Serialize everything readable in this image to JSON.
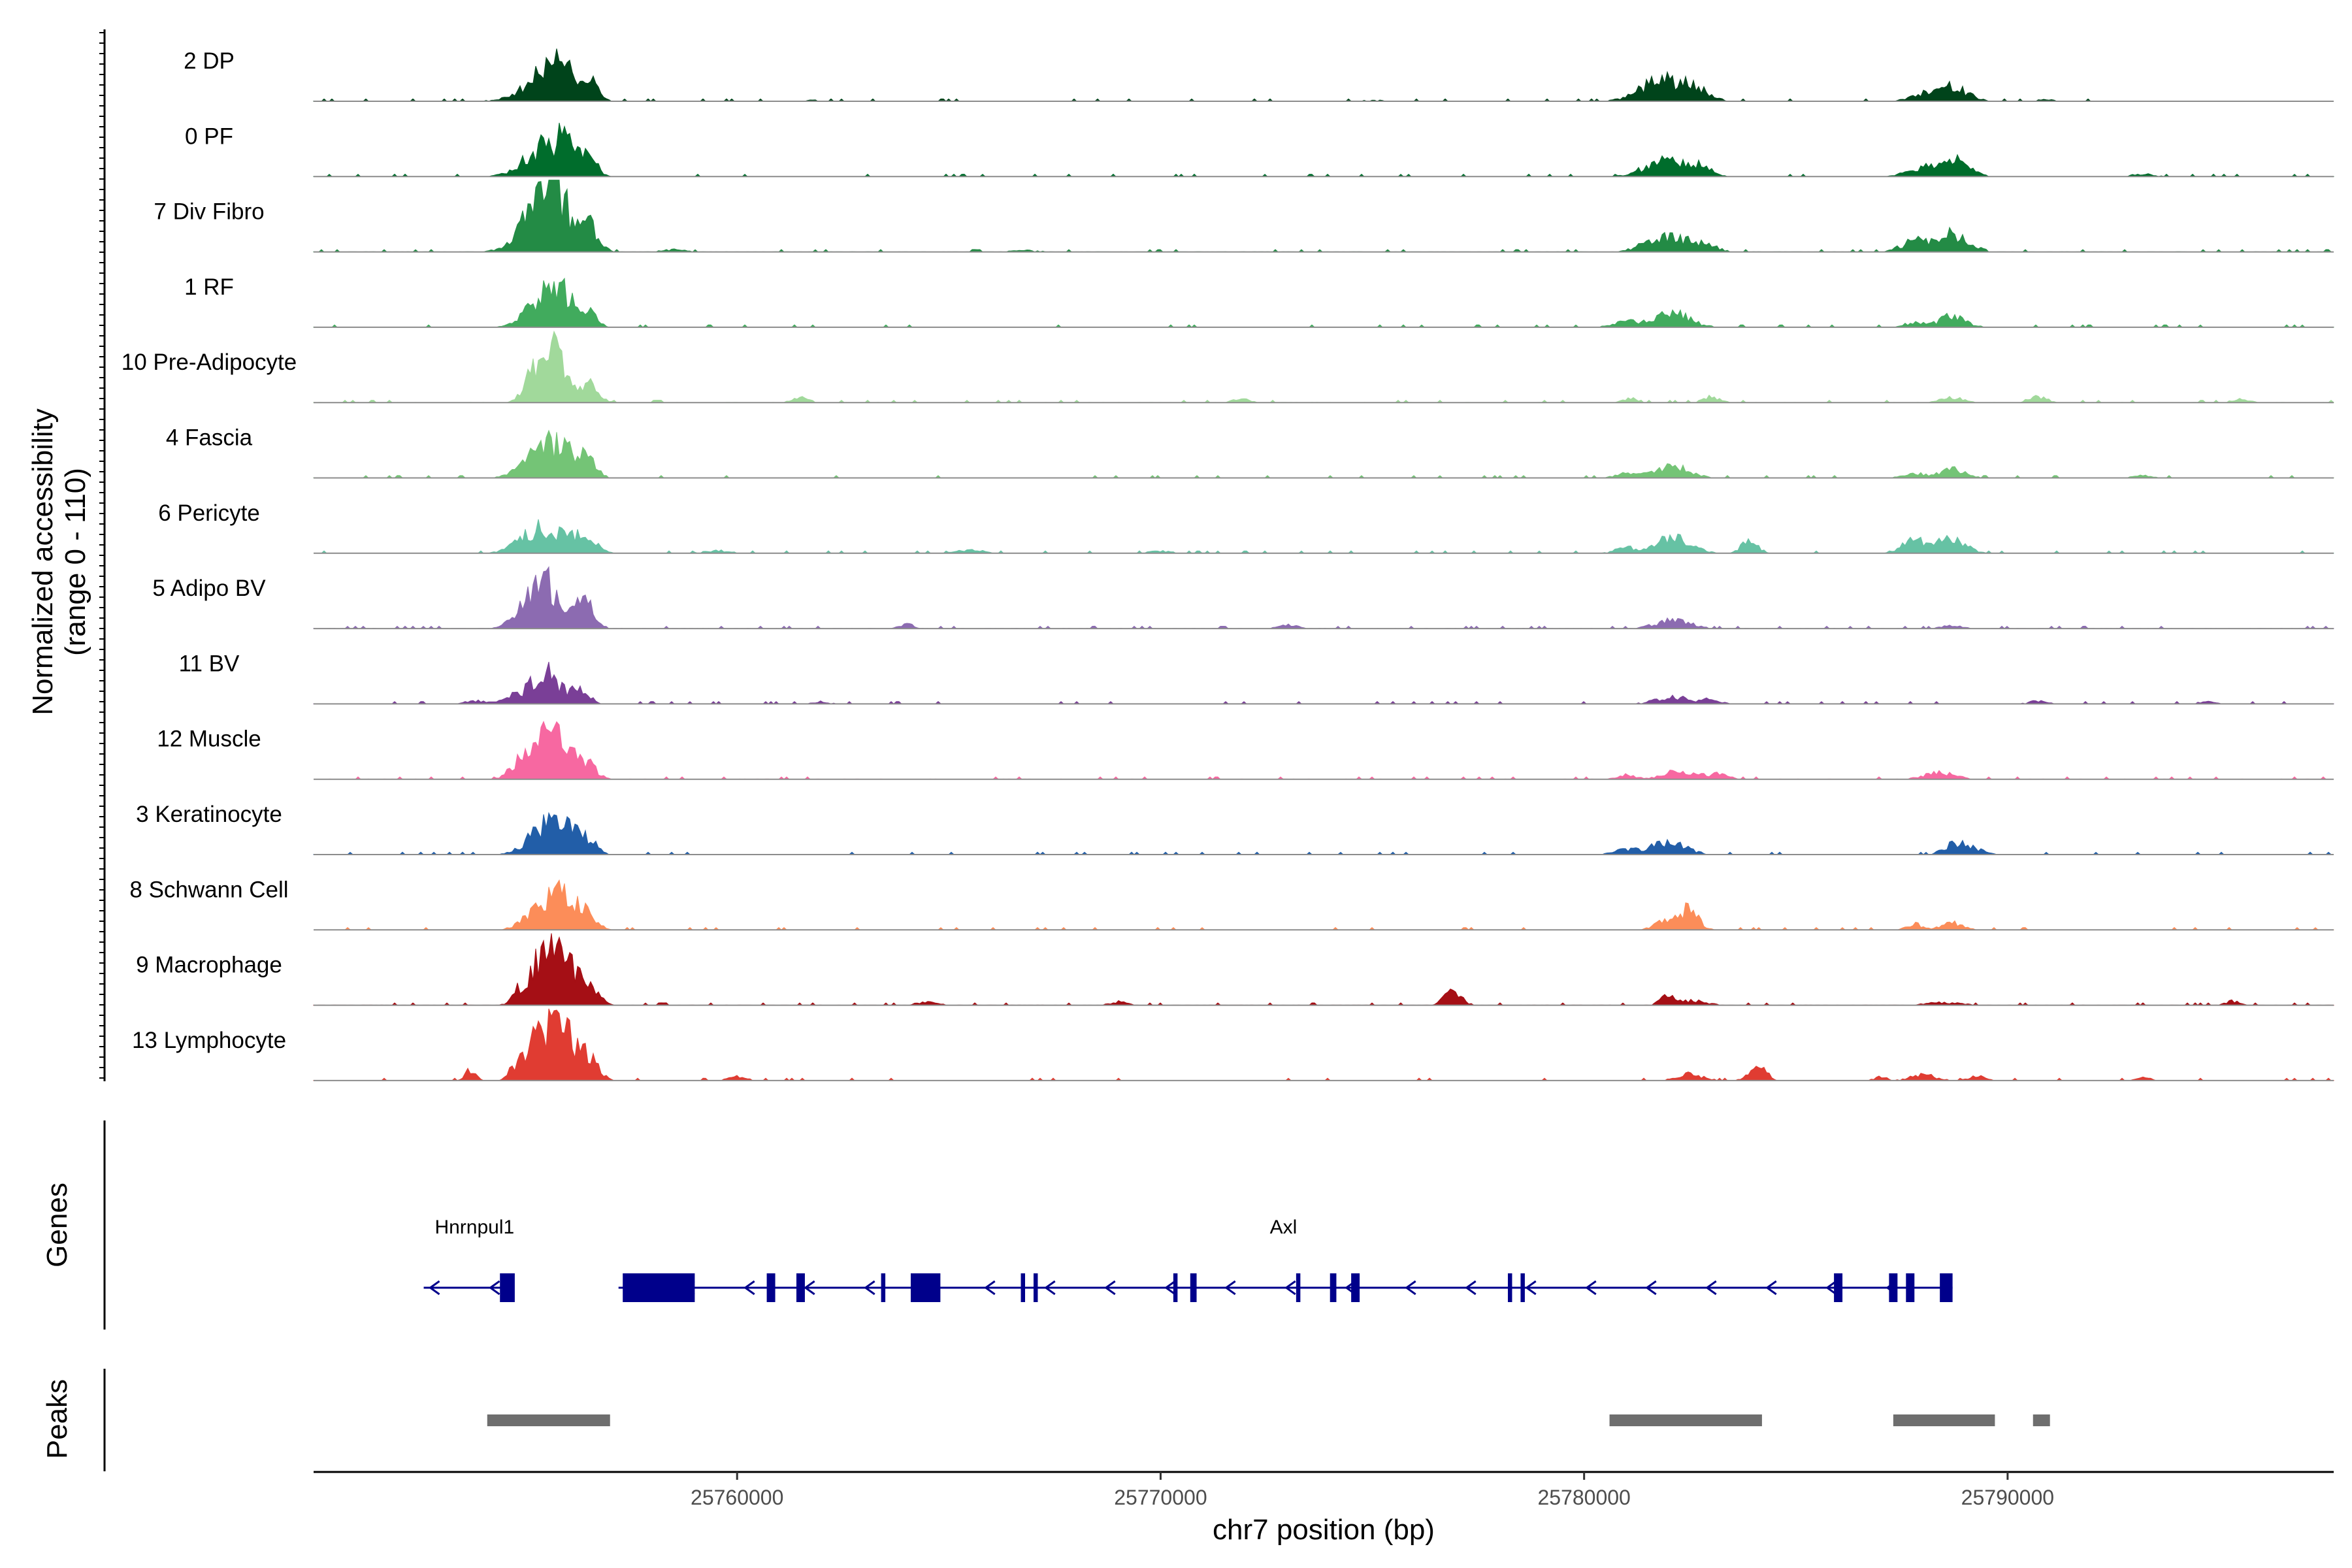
{
  "chart_data": {
    "type": "area",
    "title": "",
    "region": "chr7",
    "coverage": {
      "ylabel_line1": "Normalized accessibility",
      "ylabel_line2": "(range 0 - 110)",
      "ylim": [
        0,
        110
      ],
      "tracks": [
        {
          "name": "2 DP",
          "color": "#00441b",
          "peaks": [
            [
              25755500,
              50,
              520
            ],
            [
              25755900,
              38,
              260
            ],
            [
              25756500,
              30,
              200
            ],
            [
              25761800,
              3,
              150
            ],
            [
              25775000,
              2,
              300
            ],
            [
              25781900,
              40,
              520
            ],
            [
              25782700,
              15,
              300
            ],
            [
              25788700,
              25,
              350
            ],
            [
              25788000,
              12,
              300
            ],
            [
              25790900,
              3,
              200
            ]
          ]
        },
        {
          "name": "0 PF",
          "color": "#006d2c",
          "peaks": [
            [
              25755500,
              55,
              480
            ],
            [
              25756000,
              35,
              250
            ],
            [
              25756500,
              28,
              200
            ],
            [
              25781900,
              30,
              450
            ],
            [
              25782700,
              16,
              300
            ],
            [
              25788700,
              30,
              350
            ],
            [
              25787900,
              15,
              300
            ],
            [
              25793200,
              5,
              250
            ]
          ]
        },
        {
          "name": "7 Div Fibro",
          "color": "#238b45",
          "peaks": [
            [
              25755400,
              95,
              450
            ],
            [
              25755800,
              50,
              300
            ],
            [
              25756500,
              42,
              220
            ],
            [
              25758500,
              4,
              300
            ],
            [
              25766800,
              3,
              300
            ],
            [
              25781900,
              28,
              450
            ],
            [
              25782800,
              14,
              300
            ],
            [
              25788700,
              32,
              380
            ],
            [
              25787800,
              18,
              320
            ]
          ]
        },
        {
          "name": "1 RF",
          "color": "#41ab5d",
          "peaks": [
            [
              25755500,
              60,
              400
            ],
            [
              25756000,
              35,
              250
            ],
            [
              25756500,
              25,
              200
            ],
            [
              25782100,
              25,
              400
            ],
            [
              25781000,
              10,
              300
            ],
            [
              25788700,
              20,
              300
            ],
            [
              25787800,
              8,
              250
            ]
          ]
        },
        {
          "name": "10 Pre-Adipocyte",
          "color": "#a1d99b",
          "peaks": [
            [
              25755400,
              80,
              300
            ],
            [
              25755800,
              55,
              250
            ],
            [
              25756500,
              35,
              220
            ],
            [
              25761500,
              8,
              200
            ],
            [
              25771900,
              6,
              200
            ],
            [
              25781100,
              7,
              200
            ],
            [
              25783000,
              10,
              200
            ],
            [
              25788700,
              10,
              250
            ],
            [
              25790700,
              12,
              200
            ],
            [
              25795500,
              6,
              200
            ]
          ]
        },
        {
          "name": "4 Fascia",
          "color": "#74c476",
          "peaks": [
            [
              25755500,
              55,
              450
            ],
            [
              25756000,
              30,
              250
            ],
            [
              25756500,
              25,
              200
            ],
            [
              25782100,
              22,
              400
            ],
            [
              25781000,
              8,
              250
            ],
            [
              25788700,
              15,
              300
            ],
            [
              25787800,
              8,
              250
            ],
            [
              25793200,
              5,
              200
            ]
          ]
        },
        {
          "name": "6 Pericyte",
          "color": "#66c2a4",
          "peaks": [
            [
              25755400,
              50,
              450
            ],
            [
              25756400,
              30,
              250
            ],
            [
              25759500,
              5,
              300
            ],
            [
              25765500,
              6,
              300
            ],
            [
              25770000,
              4,
              250
            ],
            [
              25782100,
              30,
              400
            ],
            [
              25783900,
              20,
              200
            ],
            [
              25788700,
              28,
              300
            ],
            [
              25787800,
              22,
              300
            ],
            [
              25781000,
              10,
              250
            ]
          ]
        },
        {
          "name": "5 Adipo BV",
          "color": "#8c6bb1",
          "peaks": [
            [
              25755200,
              60,
              350
            ],
            [
              25755700,
              50,
              300
            ],
            [
              25756400,
              45,
              220
            ],
            [
              25764000,
              10,
              150
            ],
            [
              25773000,
              6,
              250
            ],
            [
              25782100,
              15,
              400
            ],
            [
              25788700,
              5,
              250
            ]
          ]
        },
        {
          "name": "11 BV",
          "color": "#7a3f97",
          "peaks": [
            [
              25755500,
              60,
              300
            ],
            [
              25754800,
              15,
              300
            ],
            [
              25756300,
              25,
              200
            ],
            [
              25753800,
              6,
              200
            ],
            [
              25762000,
              4,
              200
            ],
            [
              25782100,
              12,
              400
            ],
            [
              25783000,
              8,
              200
            ],
            [
              25790700,
              6,
              200
            ],
            [
              25794700,
              4,
              200
            ]
          ]
        },
        {
          "name": "12 Muscle",
          "color": "#f768a1",
          "peaks": [
            [
              25755400,
              80,
              350
            ],
            [
              25755900,
              50,
              250
            ],
            [
              25756500,
              25,
              200
            ],
            [
              25754800,
              18,
              200
            ],
            [
              25782300,
              15,
              400
            ],
            [
              25783200,
              10,
              200
            ],
            [
              25788400,
              12,
              350
            ],
            [
              25781000,
              8,
              200
            ]
          ]
        },
        {
          "name": "3 Keratinocyte",
          "color": "#225ea8",
          "peaks": [
            [
              25755500,
              50,
              400
            ],
            [
              25756000,
              30,
              250
            ],
            [
              25756500,
              22,
              200
            ],
            [
              25782000,
              22,
              400
            ],
            [
              25781000,
              8,
              300
            ],
            [
              25789000,
              18,
              300
            ],
            [
              25788600,
              10,
              200
            ]
          ]
        },
        {
          "name": "8 Schwann Cell",
          "color": "#fc8d59",
          "peaks": [
            [
              25755500,
              50,
              400
            ],
            [
              25756000,
              38,
              250
            ],
            [
              25756500,
              25,
              200
            ],
            [
              25782100,
              20,
              350
            ],
            [
              25782500,
              25,
              200
            ],
            [
              25788700,
              12,
              250
            ],
            [
              25787800,
              10,
              200
            ]
          ]
        },
        {
          "name": "9 Macrophage",
          "color": "#a50f15",
          "peaks": [
            [
              25755300,
              80,
              220
            ],
            [
              25755700,
              95,
              200
            ],
            [
              25756100,
              55,
              200
            ],
            [
              25756500,
              35,
              220
            ],
            [
              25754800,
              22,
              150
            ],
            [
              25776900,
              25,
              200
            ],
            [
              25782000,
              15,
              200
            ],
            [
              25782600,
              8,
              300
            ],
            [
              25788500,
              5,
              400
            ],
            [
              25795300,
              8,
              150
            ],
            [
              25764500,
              5,
              300
            ],
            [
              25769000,
              6,
              200
            ]
          ]
        },
        {
          "name": "13 Lymphocyte",
          "color": "#e03c32",
          "peaks": [
            [
              25755300,
              90,
              200
            ],
            [
              25755700,
              85,
              200
            ],
            [
              25756100,
              60,
              200
            ],
            [
              25756500,
              40,
              220
            ],
            [
              25754800,
              28,
              180
            ],
            [
              25753700,
              18,
              120
            ],
            [
              25760000,
              8,
              200
            ],
            [
              25784100,
              25,
              200
            ],
            [
              25782500,
              12,
              300
            ],
            [
              25788000,
              10,
              300
            ],
            [
              25789300,
              8,
              200
            ],
            [
              25787000,
              6,
              150
            ],
            [
              25793200,
              6,
              150
            ]
          ]
        }
      ]
    },
    "genes_track": {
      "label": "Genes",
      "genes": [
        {
          "name": "Hnrnpul1",
          "start": 25752600,
          "end": 25754600,
          "strand": "-",
          "exons": [
            [
              25754400,
              25754750
            ]
          ],
          "label_position": 25753800
        },
        {
          "name": "Axl",
          "start": 25757200,
          "end": 25788700,
          "strand": "-",
          "exons": [
            [
              25757300,
              25759000
            ],
            [
              25760700,
              25760900
            ],
            [
              25761400,
              25761600
            ],
            [
              25763400,
              25763500
            ],
            [
              25764100,
              25764800
            ],
            [
              25766700,
              25766800
            ],
            [
              25767000,
              25767100
            ],
            [
              25770300,
              25770400
            ],
            [
              25770700,
              25770850
            ],
            [
              25773200,
              25773300
            ],
            [
              25774000,
              25774150
            ],
            [
              25774500,
              25774700
            ],
            [
              25778200,
              25778300
            ],
            [
              25778500,
              25778600
            ],
            [
              25785900,
              25786100
            ],
            [
              25787200,
              25787400
            ],
            [
              25787600,
              25787800
            ],
            [
              25788400,
              25788700
            ]
          ],
          "label_position": 25772900
        }
      ]
    },
    "peaks_track": {
      "label": "Peaks",
      "regions": [
        [
          25754100,
          25757000
        ],
        [
          25780600,
          25784200
        ],
        [
          25787300,
          25789700
        ],
        [
          25790600,
          25791000
        ]
      ]
    },
    "x_axis": {
      "label": "chr7 position (bp)",
      "xlim": [
        25750000,
        25797700
      ],
      "ticks": [
        25760000,
        25770000,
        25780000,
        25790000
      ],
      "tick_labels": [
        "25760000",
        "25770000",
        "25780000",
        "25790000"
      ]
    }
  }
}
